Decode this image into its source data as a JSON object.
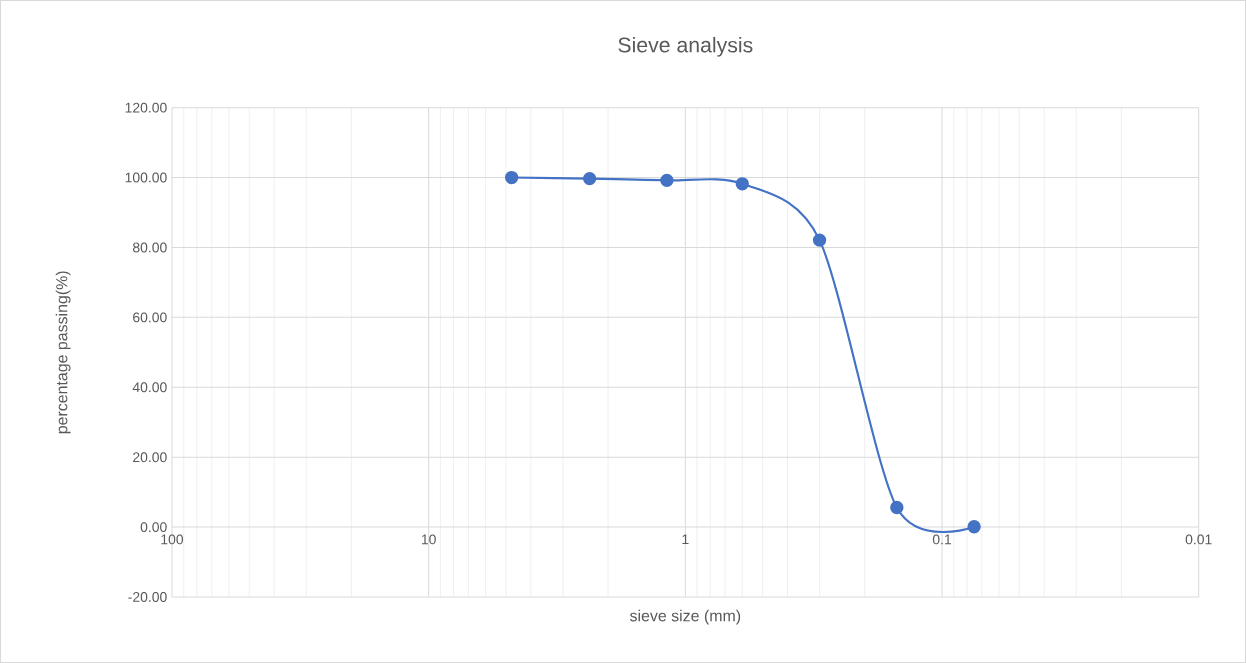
{
  "chart_data": {
    "type": "line",
    "title": "Sieve analysis",
    "xlabel": "sieve size (mm)",
    "ylabel": "percentage passing(%)",
    "log": "x",
    "xlim": [
      100,
      0.01
    ],
    "xticks": [
      100,
      10,
      1,
      0.1,
      0.01
    ],
    "ylim": [
      -20,
      120
    ],
    "yticks": [
      {
        "value": -20,
        "label": "-20.00"
      },
      {
        "value": 0,
        "label": "0.00"
      },
      {
        "value": 20,
        "label": "20.00"
      },
      {
        "value": 40,
        "label": "40.00"
      },
      {
        "value": 60,
        "label": "60.00"
      },
      {
        "value": 80,
        "label": "80.00"
      },
      {
        "value": 100,
        "label": "100.00"
      },
      {
        "value": 120,
        "label": "120.00"
      }
    ],
    "x": [
      4.75,
      2.36,
      1.18,
      0.6,
      0.3,
      0.15,
      0.075
    ],
    "series": [
      {
        "color": "#4472c4",
        "values": [
          100,
          99.7,
          99.2,
          98.2,
          82.1,
          5.6,
          0.1
        ]
      }
    ],
    "grid": true,
    "marker": "circle",
    "line_style": "solid"
  }
}
